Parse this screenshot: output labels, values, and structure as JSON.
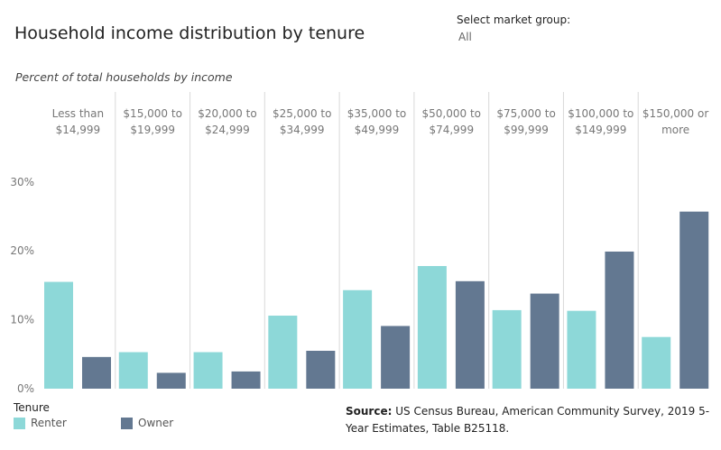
{
  "header": {
    "title": "Household income distribution by tenure",
    "filter_label": "Select market group:",
    "filter_value": "All"
  },
  "chart_data": {
    "type": "bar",
    "title": "Household income distribution by tenure",
    "subtitle": "Percent of total households by income",
    "categories": [
      [
        "Less than",
        "$14,999"
      ],
      [
        "$15,000 to",
        "$19,999"
      ],
      [
        "$20,000 to",
        "$24,999"
      ],
      [
        "$25,000 to",
        "$34,999"
      ],
      [
        "$35,000 to",
        "$49,999"
      ],
      [
        "$50,000 to",
        "$74,999"
      ],
      [
        "$75,000 to",
        "$99,999"
      ],
      [
        "$100,000 to",
        "$149,999"
      ],
      [
        "$150,000 or",
        "more"
      ]
    ],
    "series": [
      {
        "name": "Renter",
        "color": "#8dd8d8",
        "values": [
          15.5,
          5.3,
          5.3,
          10.6,
          14.3,
          17.8,
          11.4,
          11.3,
          7.5
        ]
      },
      {
        "name": "Owner",
        "color": "#637891",
        "values": [
          4.6,
          2.3,
          2.5,
          5.5,
          9.1,
          15.6,
          13.8,
          19.9,
          25.7
        ]
      }
    ],
    "ylim": [
      0,
      30
    ],
    "yticks": [
      0,
      10,
      20,
      30
    ],
    "ytick_labels": [
      "0%",
      "10%",
      "20%",
      "30%"
    ],
    "grid": false,
    "legend": {
      "title": "Tenure",
      "placement": "bottom-left"
    }
  },
  "source": {
    "label": "Source:",
    "text": "US Census Bureau, American Community Survey, 2019 5-Year Estimates, Table B25118."
  }
}
